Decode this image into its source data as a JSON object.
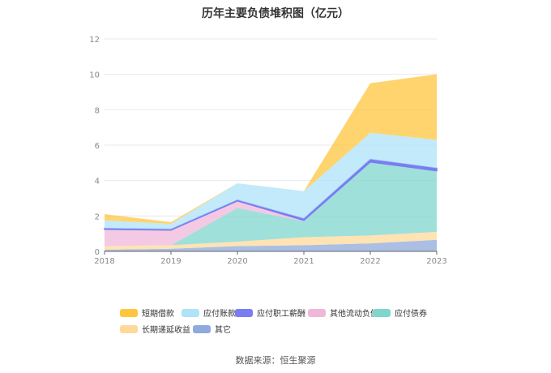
{
  "chart_data": {
    "type": "area",
    "stacked": true,
    "title": "历年主要负债堆积图（亿元）",
    "x": [
      "2018",
      "2019",
      "2020",
      "2021",
      "2022",
      "2023"
    ],
    "ylim": [
      0,
      12
    ],
    "yticks": [
      0,
      2,
      4,
      6,
      8,
      10,
      12
    ],
    "grid": true,
    "legend_position": "bottom",
    "series": [
      {
        "name": "其它",
        "color": "#8faadc",
        "values": [
          0.1,
          0.15,
          0.3,
          0.35,
          0.45,
          0.65
        ]
      },
      {
        "name": "长期递延收益",
        "color": "#ffd99a",
        "values": [
          0.2,
          0.2,
          0.25,
          0.45,
          0.45,
          0.45
        ]
      },
      {
        "name": "应付债券",
        "color": "#7fd6cf",
        "values": [
          0.0,
          0.0,
          1.9,
          0.9,
          4.15,
          3.45
        ]
      },
      {
        "name": "其他流动负债",
        "color": "#f0b7d9",
        "values": [
          0.95,
          0.85,
          0.4,
          0.05,
          0.0,
          0.0
        ]
      },
      {
        "name": "应付职工薪酬",
        "color": "#7a7cf2",
        "values": [
          0.05,
          0.05,
          0.05,
          0.1,
          0.15,
          0.15
        ]
      },
      {
        "name": "应付账款",
        "color": "#aee3f8",
        "values": [
          0.45,
          0.3,
          0.95,
          1.55,
          1.5,
          1.6
        ]
      },
      {
        "name": "短期借款",
        "color": "#ffc53d",
        "values": [
          0.35,
          0.1,
          0.0,
          0.0,
          2.8,
          3.7
        ]
      }
    ],
    "legend_order": [
      "短期借款",
      "应付账款",
      "应付职工薪酬",
      "其他流动负债",
      "应付债券",
      "长期递延收益",
      "其它"
    ]
  },
  "source": "数据来源：恒生聚源"
}
